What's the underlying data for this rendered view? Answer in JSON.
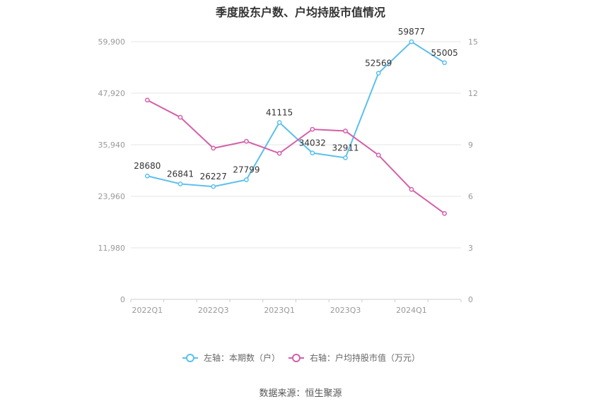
{
  "title": "季度股东户数、户均持股市值情况",
  "source": "数据来源：恒生聚源",
  "colors": {
    "left_series": "#5bc0eb",
    "right_series": "#d45fa8",
    "axis_text": "#999999",
    "grid": "#e6e6e6"
  },
  "chart_data": {
    "type": "line",
    "x": [
      "2022Q1",
      "2022Q2",
      "2022Q3",
      "2022Q4",
      "2023Q1",
      "2023Q2",
      "2023Q3",
      "2023Q4",
      "2024Q1",
      "2024Q2"
    ],
    "x_tick_labels": [
      "2022Q1",
      "2022Q3",
      "2023Q1",
      "2023Q3",
      "2024Q1"
    ],
    "left_axis": {
      "ylim": [
        0,
        59900
      ],
      "tick_labels": [
        "0",
        "11,980",
        "23,960",
        "35,940",
        "47,920",
        "59,900"
      ]
    },
    "right_axis": {
      "ylim": [
        0,
        15
      ],
      "tick_labels": [
        "0",
        "3",
        "6",
        "9",
        "12",
        "15"
      ]
    },
    "series": [
      {
        "name": "左轴：本期数（户）",
        "axis": "left",
        "values": [
          28680,
          26841,
          26227,
          27799,
          41115,
          34032,
          32911,
          52569,
          59877,
          55005
        ],
        "data_labels": [
          "28680",
          "26841",
          "26227",
          "27799",
          "41115",
          "34032",
          "32911",
          "52569",
          "59877",
          "55005"
        ]
      },
      {
        "name": "右轴：户均持股市值（万元）",
        "axis": "right",
        "values": [
          11.6,
          10.6,
          8.8,
          9.2,
          8.5,
          9.9,
          9.8,
          8.4,
          6.4,
          5.0
        ]
      }
    ],
    "legend_position": "bottom",
    "grid": true
  }
}
